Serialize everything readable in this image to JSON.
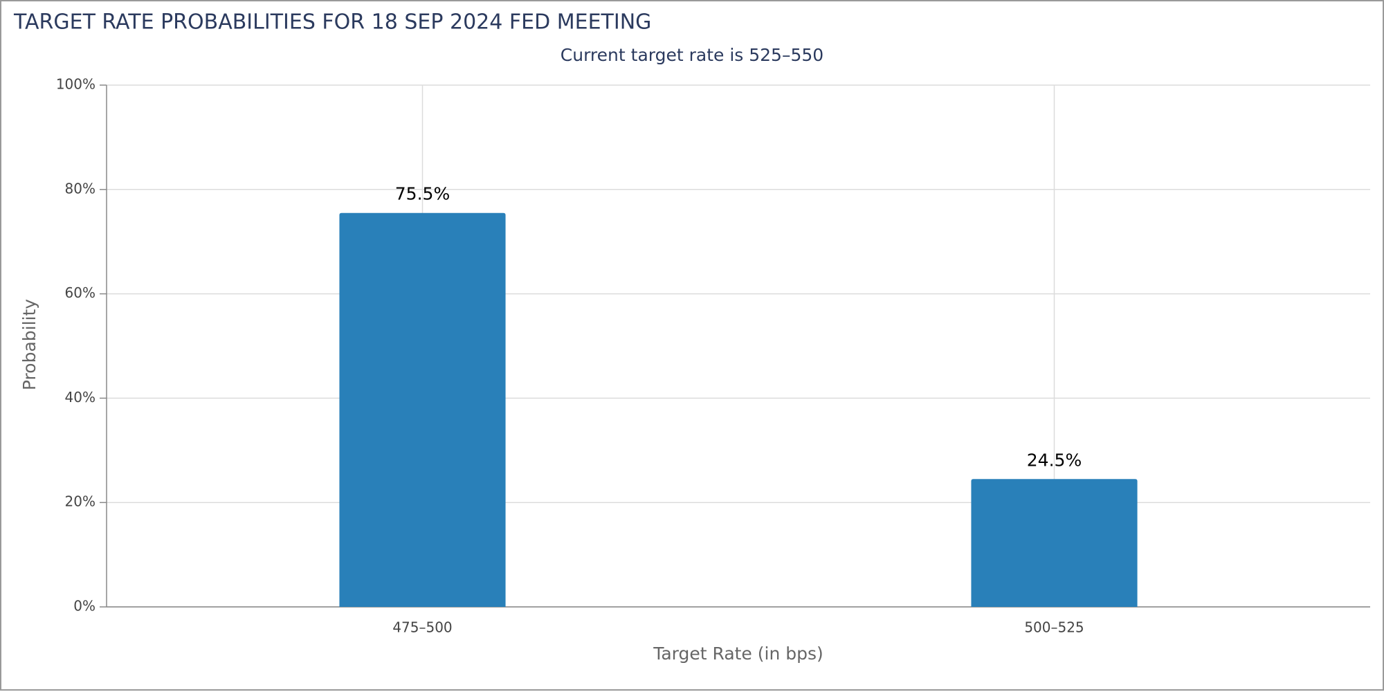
{
  "chart_data": {
    "type": "bar",
    "title": "TARGET RATE PROBABILITIES FOR 18 SEP 2024 FED MEETING",
    "subtitle": "Current target rate is 525–550",
    "x_label": "Target Rate (in bps)",
    "y_label": "Probability",
    "categories": [
      "475–500",
      "500–525"
    ],
    "values": [
      75.5,
      24.5
    ],
    "value_labels": [
      "75.5%",
      "24.5%"
    ],
    "color": "#2980b9",
    "ylim": [
      0,
      100
    ],
    "yticks": [
      {
        "value": 0,
        "label": "0%"
      },
      {
        "value": 20,
        "label": "20%"
      },
      {
        "value": 40,
        "label": "40%"
      },
      {
        "value": 60,
        "label": "60%"
      },
      {
        "value": 80,
        "label": "80%"
      },
      {
        "value": 100,
        "label": "100%"
      }
    ],
    "grid": true
  }
}
